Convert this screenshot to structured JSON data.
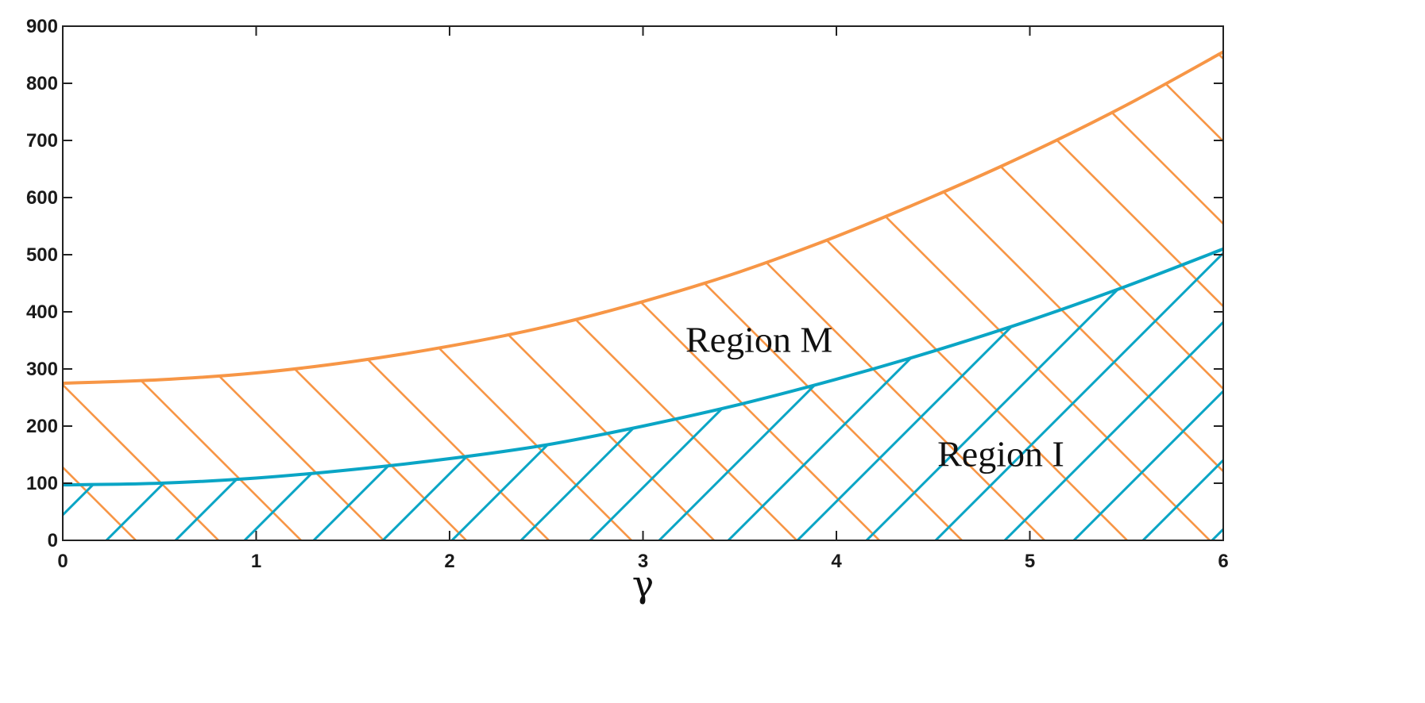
{
  "chart_data": {
    "type": "area",
    "title": "",
    "xlabel": "γ",
    "ylabel": "",
    "xlim": [
      0,
      6
    ],
    "ylim": [
      0,
      900
    ],
    "x_ticks": [
      0,
      1,
      2,
      3,
      4,
      5,
      6
    ],
    "y_ticks": [
      0,
      100,
      200,
      300,
      400,
      500,
      600,
      700,
      800,
      900
    ],
    "grid": false,
    "legend": "none",
    "series": [
      {
        "color": "#F79646",
        "x": [
          0,
          0.5,
          1,
          1.5,
          2,
          2.5,
          3,
          3.5,
          4,
          4.5,
          5,
          5.5,
          6
        ],
        "y": [
          275,
          281,
          293,
          313,
          340,
          374,
          418,
          470,
          532,
          602,
          678,
          762,
          855
        ]
      },
      {
        "color": "#0AA5C5",
        "x": [
          0,
          0.5,
          1,
          1.5,
          2,
          2.5,
          3,
          3.5,
          4,
          4.5,
          5,
          5.5,
          6
        ],
        "y": [
          97,
          100,
          109,
          124,
          143,
          167,
          200,
          238,
          282,
          331,
          385,
          445,
          510
        ]
      }
    ],
    "annotations": [
      {
        "text": "Region M",
        "x": 3.6,
        "y": 330
      },
      {
        "text": "Region I",
        "x": 4.85,
        "y": 130
      }
    ],
    "hatch": [
      {
        "between": "orange_curve_and_zero",
        "direction": "down-right",
        "color": "#F79646"
      },
      {
        "between": "blue_curve_and_zero",
        "direction": "up-right",
        "color": "#0AA5C5"
      }
    ]
  }
}
